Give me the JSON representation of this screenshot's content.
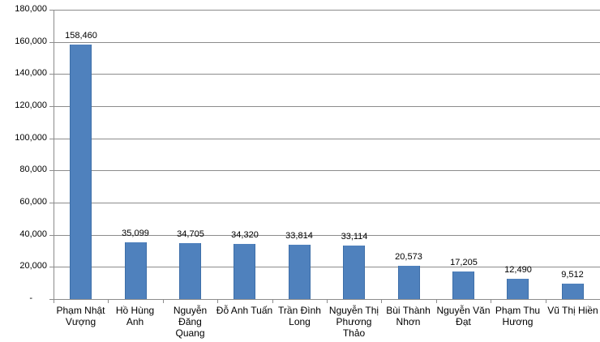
{
  "chart_data": {
    "type": "bar",
    "title": "",
    "xlabel": "",
    "ylabel": "",
    "ylim": [
      0,
      180000
    ],
    "grid": true,
    "legend": null,
    "y_ticks": [
      "-",
      "20,000",
      "40,000",
      "60,000",
      "80,000",
      "100,000",
      "120,000",
      "140,000",
      "160,000",
      "180,000"
    ],
    "categories": [
      "Phạm Nhật\nVượng",
      "Hồ Hùng Anh",
      "Nguyễn\nĐăng\nQuang",
      "Đỗ Anh Tuấn",
      "Trần Đình\nLong",
      "Nguyễn Thị\nPhương\nThảo",
      "Bùi Thành\nNhơn",
      "Nguyễn Văn\nĐạt",
      "Phạm Thu\nHương",
      "Vũ Thị Hiền"
    ],
    "values": [
      158460,
      35099,
      34705,
      34320,
      33814,
      33114,
      20573,
      17205,
      12490,
      9512
    ],
    "data_labels": [
      "158,460",
      "35,099",
      "34,705",
      "34,320",
      "33,814",
      "33,114",
      "20,573",
      "17,205",
      "12,490",
      "9,512"
    ],
    "bar_color": "#4f81bd"
  }
}
